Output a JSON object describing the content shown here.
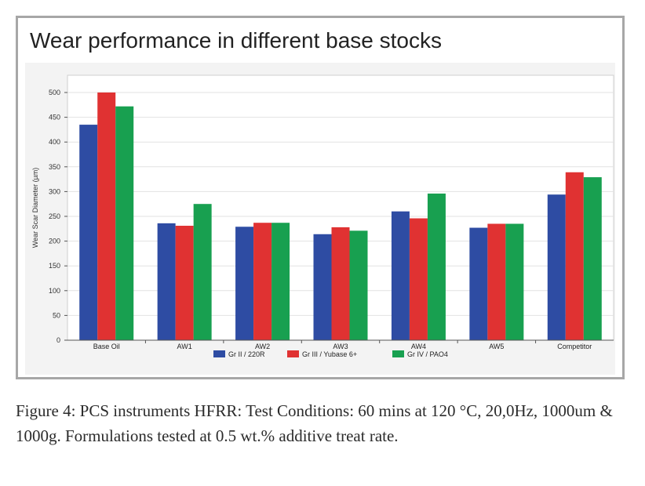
{
  "chart_data": {
    "type": "bar",
    "title": "Wear performance in different base stocks",
    "xlabel": "",
    "ylabel": "Wear Scar Diameter (µm)",
    "ylim": [
      0,
      500
    ],
    "yticks": [
      0,
      50,
      100,
      150,
      200,
      250,
      300,
      350,
      400,
      450,
      500
    ],
    "grid": true,
    "legend_position": "bottom",
    "categories": [
      "Base Oil",
      "AW1",
      "AW2",
      "AW3",
      "AW4",
      "AW5",
      "Competitor"
    ],
    "series": [
      {
        "name": "Gr II / 220R",
        "color": "#2e4ca3",
        "values": [
          435,
          236,
          229,
          214,
          260,
          227,
          294
        ]
      },
      {
        "name": "Gr III / Yubase 6+",
        "color": "#e03232",
        "values": [
          500,
          231,
          237,
          228,
          246,
          235,
          339
        ]
      },
      {
        "name": "Gr IV / PAO4",
        "color": "#18a050",
        "values": [
          472,
          275,
          237,
          221,
          296,
          235,
          329
        ]
      }
    ]
  },
  "caption": "Figure 4: PCS instruments HFRR: Test Conditions: 60 mins at 120 °C, 20,0Hz, 1000um & 1000g. Formulations tested at 0.5 wt.% additive treat rate."
}
